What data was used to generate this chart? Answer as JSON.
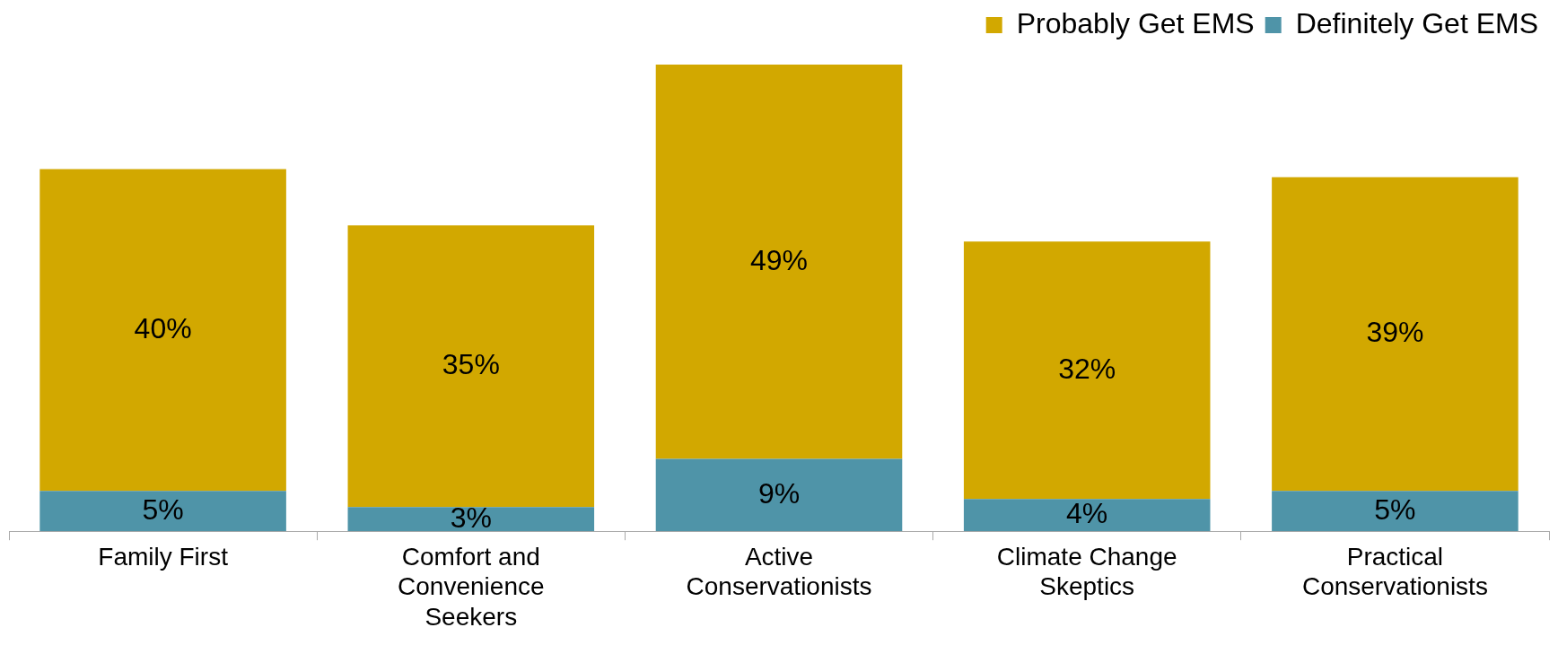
{
  "chart_data": {
    "type": "bar",
    "stacked": true,
    "categories": [
      "Family First",
      "Comfort and Convenience Seekers",
      "Active Conservationists",
      "Climate Change Skeptics",
      "Practical Conservationists"
    ],
    "series": [
      {
        "name": "Definitely Get EMS",
        "color": "#4f94a8",
        "values": [
          5,
          3,
          9,
          4,
          5
        ],
        "value_labels": [
          "5%",
          "3%",
          "9%",
          "4%",
          "5%"
        ]
      },
      {
        "name": "Probably Get EMS",
        "color": "#d2a800",
        "values": [
          40,
          35,
          49,
          32,
          39
        ],
        "value_labels": [
          "40%",
          "35%",
          "49%",
          "32%",
          "39%"
        ]
      }
    ],
    "legend": "top right",
    "grid": false
  }
}
